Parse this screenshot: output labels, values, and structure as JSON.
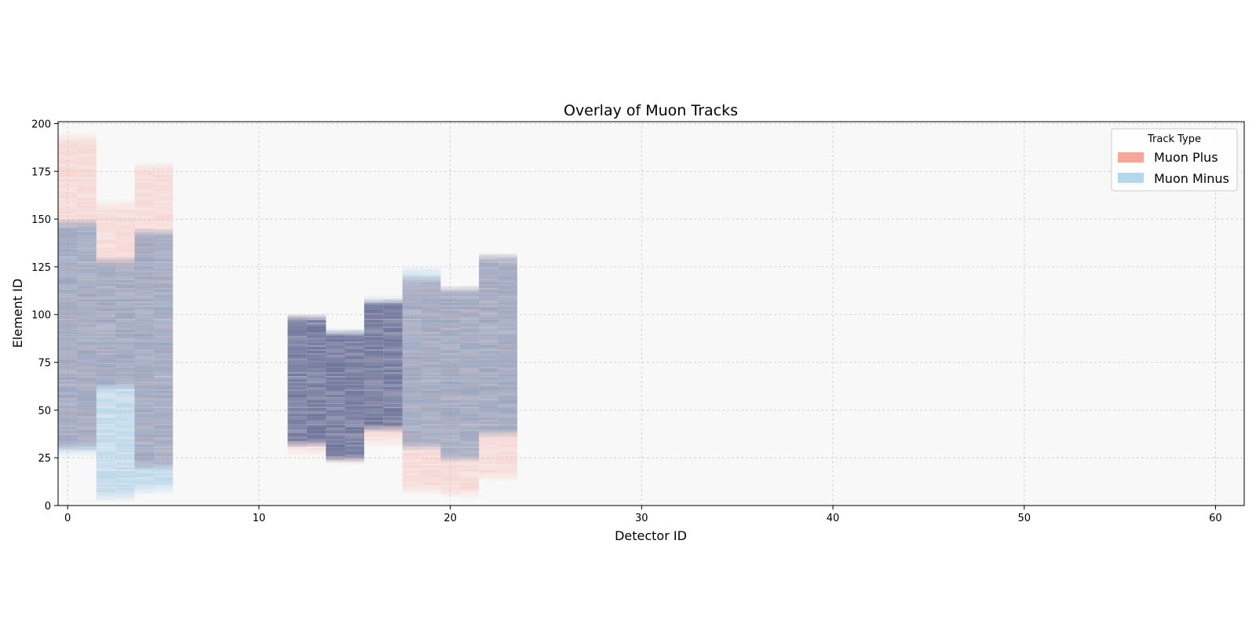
{
  "chart_data": {
    "type": "heatmap",
    "title": "Overlay of Muon Tracks",
    "xlabel": "Detector ID",
    "ylabel": "Element ID",
    "xlim": [
      -0.5,
      61.5
    ],
    "ylim": [
      0,
      201
    ],
    "xticks": [
      0,
      10,
      20,
      30,
      40,
      50,
      60
    ],
    "yticks": [
      0,
      25,
      50,
      75,
      100,
      125,
      150,
      175,
      200
    ],
    "grid": true,
    "legend": {
      "title": "Track Type",
      "placement": "top-right",
      "entries": [
        {
          "name": "Muon Plus",
          "color": "#f4a89a"
        },
        {
          "name": "Muon Minus",
          "color": "#9ecae1"
        }
      ]
    },
    "colors": {
      "plot_background": "#f8f8f8",
      "grid": "#c8c8c8",
      "muon_plus": "#f5b5ae",
      "muon_minus": "#7fb6dc",
      "overlap": "#4a4f7e"
    },
    "series": [
      {
        "name": "Muon Plus",
        "stations": [
          {
            "detectors": [
              0,
              1
            ],
            "element_range": [
              28,
              195
            ]
          },
          {
            "detectors": [
              2,
              3
            ],
            "element_range": [
              60,
              160
            ]
          },
          {
            "detectors": [
              4,
              5
            ],
            "element_range": [
              18,
              180
            ]
          },
          {
            "detectors": [
              12,
              13
            ],
            "element_range": [
              25,
              100
            ]
          },
          {
            "detectors": [
              14,
              15
            ],
            "element_range": [
              20,
              92
            ]
          },
          {
            "detectors": [
              16,
              17
            ],
            "element_range": [
              30,
              108
            ]
          },
          {
            "detectors": [
              18,
              19
            ],
            "element_range": [
              5,
              120
            ]
          },
          {
            "detectors": [
              20,
              21
            ],
            "element_range": [
              3,
              115
            ]
          },
          {
            "detectors": [
              22,
              23
            ],
            "element_range": [
              12,
              132
            ]
          }
        ]
      },
      {
        "name": "Muon Minus",
        "stations": [
          {
            "detectors": [
              0,
              1
            ],
            "element_range": [
              25,
              150
            ]
          },
          {
            "detectors": [
              2,
              3
            ],
            "element_range": [
              1,
              130
            ]
          },
          {
            "detectors": [
              4,
              5
            ],
            "element_range": [
              5,
              145
            ]
          },
          {
            "detectors": [
              12,
              13
            ],
            "element_range": [
              30,
              100
            ]
          },
          {
            "detectors": [
              14,
              15
            ],
            "element_range": [
              22,
              93
            ]
          },
          {
            "detectors": [
              16,
              17
            ],
            "element_range": [
              38,
              110
            ]
          },
          {
            "detectors": [
              18,
              19
            ],
            "element_range": [
              28,
              125
            ]
          },
          {
            "detectors": [
              20,
              21
            ],
            "element_range": [
              22,
              115
            ]
          },
          {
            "detectors": [
              22,
              23
            ],
            "element_range": [
              35,
              132
            ]
          }
        ]
      }
    ]
  }
}
